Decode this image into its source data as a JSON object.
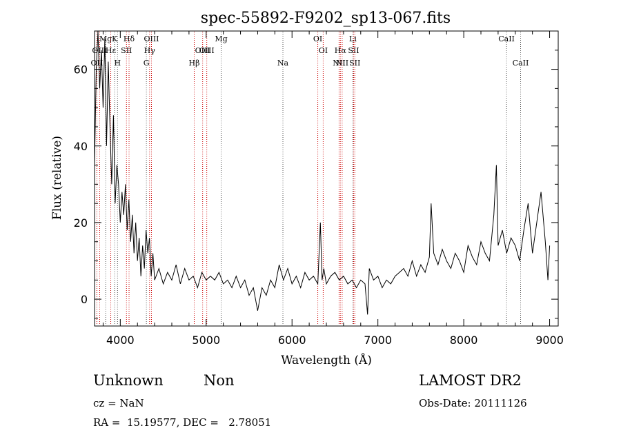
{
  "chart_data": {
    "type": "line",
    "title": "spec-55892-F9202_sp13-067.fits",
    "xlabel": "Wavelength (Å)",
    "ylabel": "Flux (relative)",
    "xlim": [
      3700,
      9100
    ],
    "ylim": [
      -7,
      70
    ],
    "xticks": [
      4000,
      5000,
      6000,
      7000,
      8000,
      9000
    ],
    "yticks": [
      0,
      20,
      40,
      60
    ],
    "grid": false,
    "line_color": "#000000",
    "marker_colors": {
      "emission": "#cc0000",
      "absorption": "#555555"
    },
    "series": [
      {
        "x": [
          3700,
          3720,
          3740,
          3760,
          3780,
          3800,
          3820,
          3840,
          3860,
          3880,
          3900,
          3920,
          3940,
          3960,
          3980,
          4000,
          4020,
          4040,
          4060,
          4080,
          4100,
          4120,
          4140,
          4160,
          4180,
          4200,
          4220,
          4240,
          4260,
          4280,
          4300,
          4320,
          4340,
          4360,
          4380,
          4400,
          4450,
          4500,
          4550,
          4600,
          4650,
          4700,
          4750,
          4800,
          4850,
          4900,
          4950,
          5000,
          5050,
          5100,
          5150,
          5200,
          5250,
          5300,
          5350,
          5400,
          5450,
          5500,
          5550,
          5600,
          5650,
          5700,
          5750,
          5800,
          5850,
          5900,
          5950,
          6000,
          6050,
          6100,
          6150,
          6200,
          6250,
          6300,
          6330,
          6350,
          6370,
          6400,
          6450,
          6500,
          6550,
          6600,
          6650,
          6700,
          6750,
          6800,
          6850,
          6880,
          6900,
          6950,
          7000,
          7050,
          7100,
          7150,
          7200,
          7250,
          7300,
          7350,
          7400,
          7450,
          7500,
          7550,
          7600,
          7620,
          7650,
          7700,
          7750,
          7800,
          7850,
          7900,
          7950,
          8000,
          8050,
          8100,
          8150,
          8200,
          8250,
          8300,
          8350,
          8380,
          8400,
          8450,
          8500,
          8550,
          8600,
          8650,
          8700,
          8750,
          8800,
          8850,
          8900,
          8950,
          8980,
          9000
        ],
        "y": [
          35,
          60,
          70,
          55,
          65,
          50,
          68,
          40,
          62,
          45,
          30,
          48,
          25,
          35,
          30,
          20,
          28,
          22,
          30,
          18,
          26,
          15,
          22,
          12,
          20,
          10,
          16,
          6,
          14,
          8,
          18,
          12,
          16,
          6,
          12,
          5,
          8,
          4,
          7,
          5,
          9,
          4,
          8,
          5,
          6,
          3,
          7,
          5,
          6,
          5,
          7,
          4,
          5,
          3,
          6,
          3,
          5,
          1,
          3,
          -3,
          3,
          1,
          5,
          3,
          9,
          5,
          8,
          4,
          6,
          3,
          7,
          5,
          6,
          4,
          20,
          5,
          8,
          4,
          6,
          7,
          5,
          6,
          4,
          5,
          3,
          5,
          4,
          -4,
          8,
          5,
          6,
          3,
          5,
          4,
          6,
          7,
          8,
          6,
          10,
          6,
          9,
          7,
          11,
          25,
          12,
          9,
          13,
          10,
          8,
          12,
          10,
          7,
          14,
          11,
          9,
          15,
          12,
          10,
          22,
          35,
          14,
          18,
          12,
          16,
          14,
          10,
          18,
          25,
          12,
          20,
          28,
          15,
          5,
          14
        ]
      }
    ],
    "line_markers": [
      {
        "label": "OII",
        "x": 3727,
        "row": 3,
        "kind": "emission"
      },
      {
        "label": "OIII",
        "x": 3760,
        "row": 2,
        "kind": "emission"
      },
      {
        "label": "Mg",
        "x": 3830,
        "row": 1,
        "kind": "absorption"
      },
      {
        "label": "Hε",
        "x": 3889,
        "row": 2,
        "kind": "emission"
      },
      {
        "label": "K",
        "x": 3934,
        "row": 1,
        "kind": "absorption"
      },
      {
        "label": "H",
        "x": 3968,
        "row": 3,
        "kind": "absorption"
      },
      {
        "label": "Hδ",
        "x": 4102,
        "row": 1,
        "kind": "emission"
      },
      {
        "label": "SII",
        "x": 4072,
        "row": 2,
        "kind": "emission"
      },
      {
        "label": "G",
        "x": 4304,
        "row": 3,
        "kind": "absorption"
      },
      {
        "label": "Hγ",
        "x": 4341,
        "row": 2,
        "kind": "emission"
      },
      {
        "label": "OIII",
        "x": 4363,
        "row": 1,
        "kind": "emission"
      },
      {
        "label": "Hβ",
        "x": 4861,
        "row": 3,
        "kind": "emission"
      },
      {
        "label": "OIII",
        "x": 4959,
        "row": 2,
        "kind": "emission"
      },
      {
        "label": "OIII",
        "x": 5007,
        "row": 2,
        "kind": "emission"
      },
      {
        "label": "Mg",
        "x": 5175,
        "row": 1,
        "kind": "absorption"
      },
      {
        "label": "Na",
        "x": 5894,
        "row": 3,
        "kind": "absorption"
      },
      {
        "label": "OI",
        "x": 6300,
        "row": 1,
        "kind": "emission"
      },
      {
        "label": "OI",
        "x": 6363,
        "row": 2,
        "kind": "emission"
      },
      {
        "label": "NII",
        "x": 6548,
        "row": 3,
        "kind": "emission"
      },
      {
        "label": "Hα",
        "x": 6563,
        "row": 2,
        "kind": "emission"
      },
      {
        "label": "NII",
        "x": 6584,
        "row": 3,
        "kind": "emission"
      },
      {
        "label": "Li",
        "x": 6708,
        "row": 1,
        "kind": "absorption"
      },
      {
        "label": "SII",
        "x": 6717,
        "row": 2,
        "kind": "emission"
      },
      {
        "label": "SII",
        "x": 6731,
        "row": 3,
        "kind": "emission"
      },
      {
        "label": "CaII",
        "x": 8498,
        "row": 1,
        "kind": "absorption"
      },
      {
        "label": "CaII",
        "x": 8662,
        "row": 3,
        "kind": "absorption"
      }
    ]
  },
  "footer": {
    "class_label": "Unknown",
    "subclass_label": "Non",
    "survey": "LAMOST DR2",
    "redshift": "cz = NaN",
    "obs_date": "Obs-Date: 20111126",
    "coords": "RA =  15.19577, DEC =   2.78051"
  }
}
